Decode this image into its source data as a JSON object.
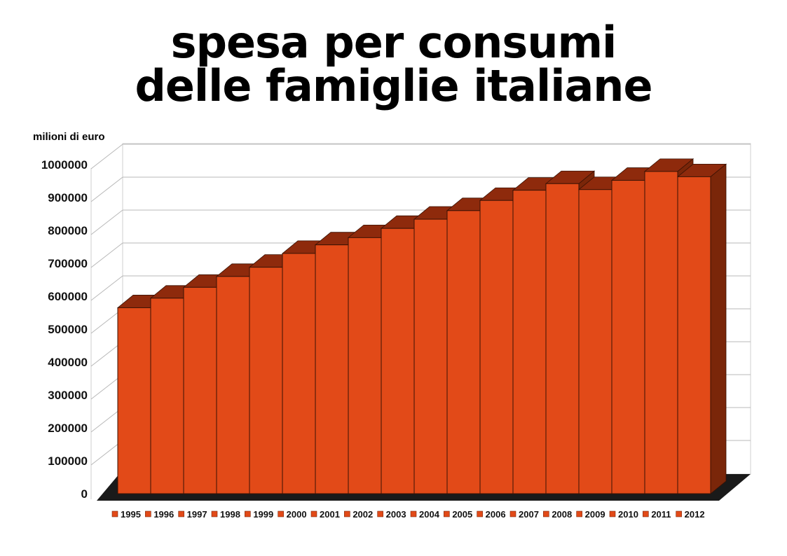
{
  "chart_data": {
    "type": "bar",
    "title_line1": "spesa per consumi",
    "title_line2": "delle famiglie italiane",
    "ylabel": "milioni di euro",
    "xlabel": "",
    "ylim": [
      0,
      1000000
    ],
    "yticks": [
      0,
      100000,
      200000,
      300000,
      400000,
      500000,
      600000,
      700000,
      800000,
      900000,
      1000000
    ],
    "yticks_labels": [
      "0",
      "100000",
      "200000",
      "300000",
      "400000",
      "500000",
      "600000",
      "700000",
      "800000",
      "900000",
      "1000000"
    ],
    "categories": [
      "1995",
      "1996",
      "1997",
      "1998",
      "1999",
      "2000",
      "2001",
      "2002",
      "2003",
      "2004",
      "2005",
      "2006",
      "2007",
      "2008",
      "2009",
      "2010",
      "2011",
      "2012"
    ],
    "values": [
      565000,
      594000,
      627000,
      660000,
      688000,
      730000,
      756000,
      778000,
      806000,
      834000,
      860000,
      891000,
      922000,
      942000,
      924000,
      952000,
      979000,
      963000
    ],
    "legend_position": "bottom",
    "grid": true,
    "colors": {
      "bar_front": "#e24a18",
      "bar_top": "#8e2a0c",
      "bar_side": "#7a2609",
      "floor": "#1a1a1a",
      "grid": "#b8b8b8"
    }
  }
}
